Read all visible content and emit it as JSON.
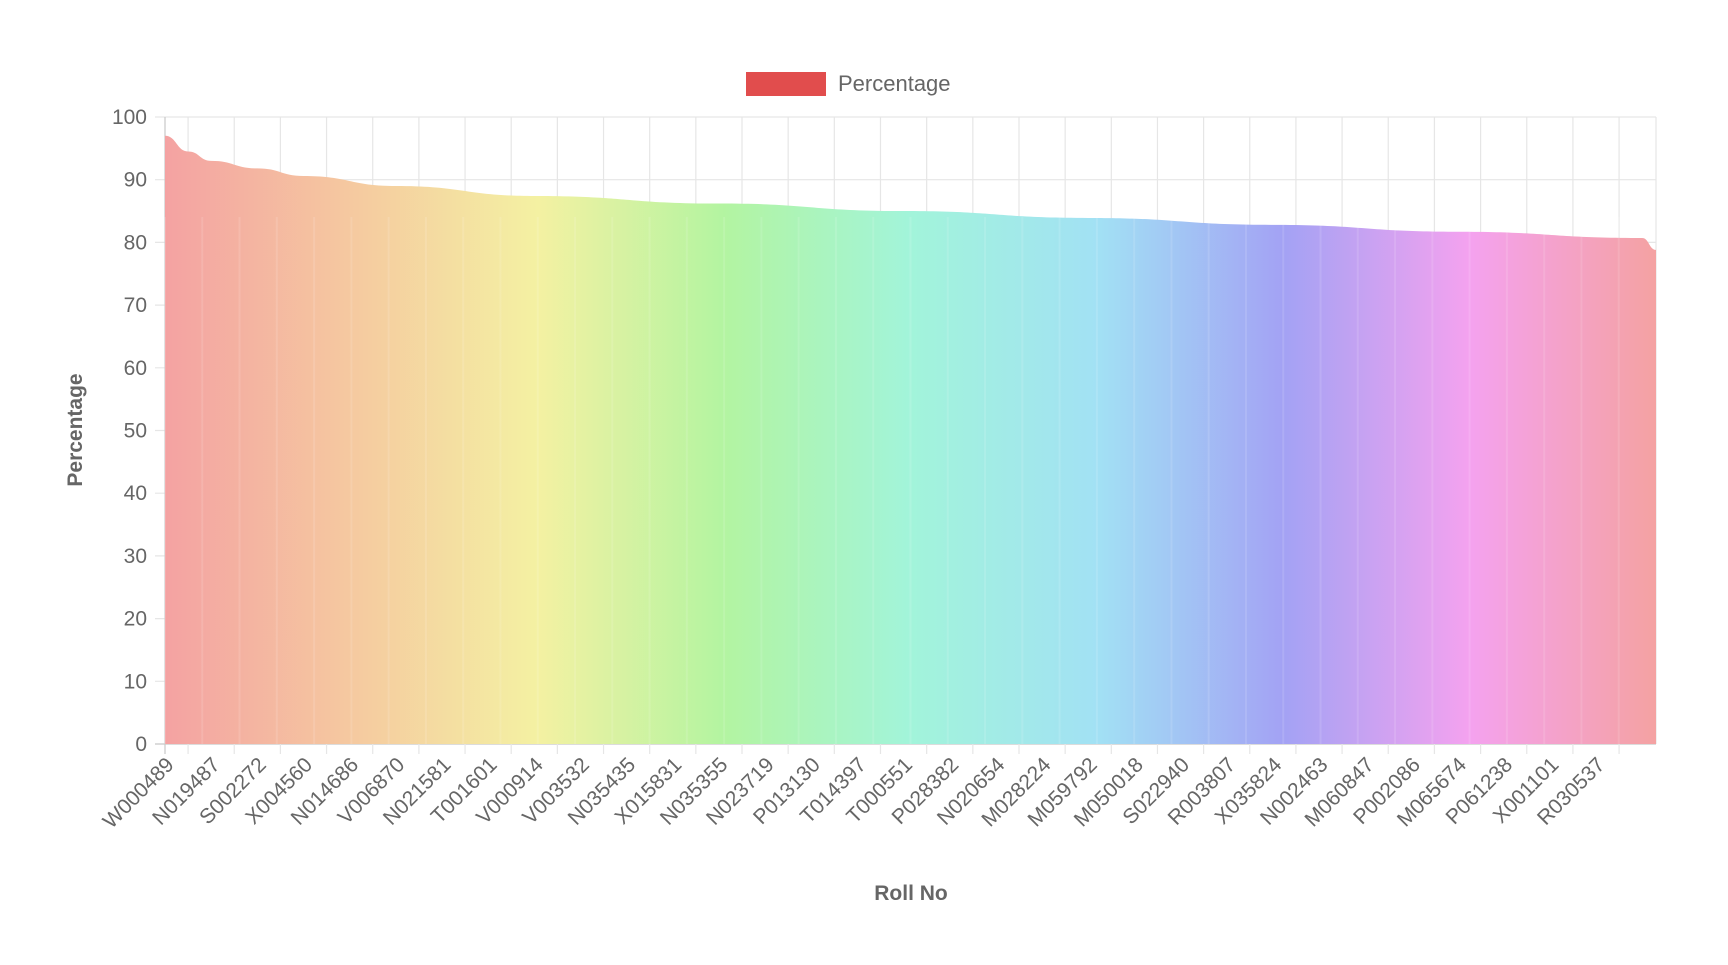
{
  "chart_data": {
    "type": "area",
    "title": "",
    "xlabel": "Roll No",
    "ylabel": "Percentage",
    "ylim": [
      0,
      100
    ],
    "yticks": [
      0,
      10,
      20,
      30,
      40,
      50,
      60,
      70,
      80,
      90,
      100
    ],
    "grid": true,
    "legend_position": "top",
    "x_tick_labels": [
      "W000489",
      "N019487",
      "S002272",
      "X004560",
      "N014686",
      "V006870",
      "N021581",
      "T001601",
      "V000914",
      "V003532",
      "N035435",
      "X015831",
      "N035355",
      "N023719",
      "P013130",
      "T014397",
      "T000551",
      "P028382",
      "N020654",
      "M028224",
      "M059792",
      "M050018",
      "S022940",
      "R003807",
      "X035824",
      "N002463",
      "M060847",
      "P002086",
      "M065674",
      "P061238",
      "X001101",
      "R030537"
    ],
    "series": [
      {
        "name": "Percentage",
        "legend_color": "#e14d4d",
        "fill_gradient": [
          "#f4a2a2",
          "#f5c9a0",
          "#f4f1a2",
          "#b3f4a1",
          "#a2f4da",
          "#a2e1f4",
          "#a3a2f4",
          "#f4a2ef",
          "#f4a2a2"
        ],
        "curve_x": [
          0,
          0.5,
          1,
          2,
          3,
          5,
          8,
          12,
          16,
          20,
          24,
          28,
          32
        ],
        "curve_y": [
          97,
          94.5,
          93,
          91.8,
          90.6,
          89,
          87.4,
          86.2,
          85.0,
          83.9,
          82.8,
          81.7,
          80.7
        ],
        "end_value": 78.8
      }
    ]
  }
}
